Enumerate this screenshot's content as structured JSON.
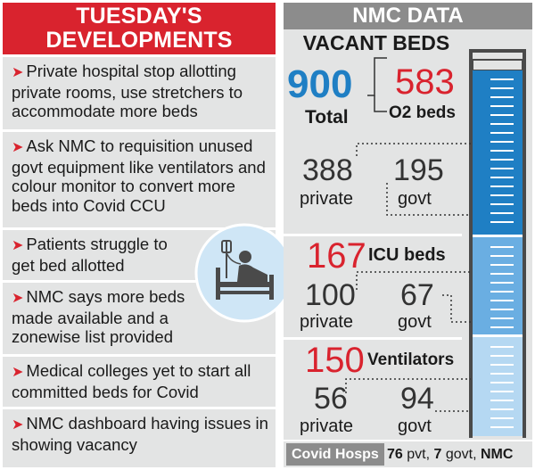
{
  "left": {
    "header": [
      "TUESDAY'S",
      "DEVELOPMENTS"
    ],
    "arrow_glyph": "➤",
    "items": [
      "Private hospital stop allotting private rooms, use stretchers to accommodate more beds",
      "Ask NMC to requisition unused govt equipment like ventilators and colour monitor to convert more beds into Covid CCU",
      "Patients struggle to get bed allotted",
      "NMC says more beds made available and a zonewise list provided",
      "Medical colleges yet to start all committed beds for Covid",
      "NMC dashboard having issues in showing vacancy"
    ]
  },
  "right": {
    "header": "NMC DATA",
    "subheader": "VACANT BEDS",
    "total": {
      "value": "900",
      "label": "Total"
    },
    "o2": {
      "value": "583",
      "label": "O2 beds"
    },
    "o2_private": {
      "value": "388",
      "label": "private"
    },
    "o2_govt": {
      "value": "195",
      "label": "govt"
    },
    "icu": {
      "value": "167",
      "label": "ICU beds"
    },
    "icu_private": {
      "value": "100",
      "label": "private"
    },
    "icu_govt": {
      "value": "67",
      "label": "govt"
    },
    "vent": {
      "value": "150",
      "label": "Ventilators"
    },
    "vent_private": {
      "value": "56",
      "label": "private"
    },
    "vent_govt": {
      "value": "94",
      "label": "govt"
    }
  },
  "footer": {
    "tag": "Covid Hosps",
    "pvt_count": "76",
    "pvt_label": "pvt,",
    "govt_count": "7",
    "govt_label": "govt,",
    "source": "NMC"
  },
  "colors": {
    "accent_red": "#d9232e",
    "accent_blue": "#1f7fc4",
    "panel_gray": "#e3e4e4",
    "header_gray": "#8c8c8c"
  }
}
